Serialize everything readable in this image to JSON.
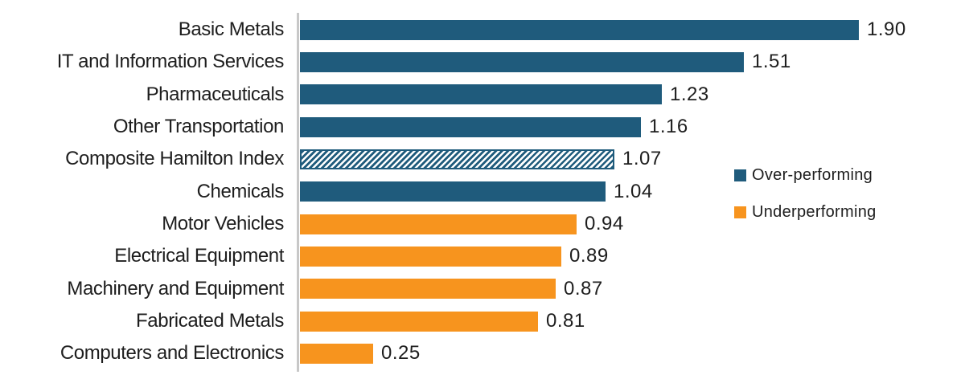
{
  "chart_data": {
    "type": "bar",
    "orientation": "horizontal",
    "title": "",
    "xlabel": "",
    "ylabel": "",
    "xlim": [
      0,
      2.0
    ],
    "grid": false,
    "legend_position": "right",
    "categories": [
      "Basic Metals",
      "IT and Information Services",
      "Pharmaceuticals",
      "Other Transportation",
      "Composite Hamilton Index",
      "Chemicals",
      "Motor Vehicles",
      "Electrical Equipment",
      "Machinery and Equipment",
      "Fabricated Metals",
      "Computers and Electronics"
    ],
    "values": [
      1.9,
      1.51,
      1.23,
      1.16,
      1.07,
      1.04,
      0.94,
      0.89,
      0.87,
      0.81,
      0.25
    ],
    "value_labels": [
      "1.90",
      "1.51",
      "1.23",
      "1.16",
      "1.07",
      "1.04",
      "0.94",
      "0.89",
      "0.87",
      "0.81",
      "0.25"
    ],
    "bar_styles": [
      "over",
      "over",
      "over",
      "over",
      "composite-hatched",
      "over",
      "under",
      "under",
      "under",
      "under",
      "under"
    ]
  },
  "legend": {
    "items": [
      {
        "label": "Over-performing",
        "style": "over",
        "color": "#1F5B7C"
      },
      {
        "label": "Underperforming",
        "style": "under",
        "color": "#F7941E"
      }
    ]
  },
  "colors": {
    "over_performing": "#1F5B7C",
    "under_performing": "#F7941E",
    "axis_line": "#C8C8C8",
    "text": "#1E1E1E",
    "background": "#FFFFFF"
  }
}
